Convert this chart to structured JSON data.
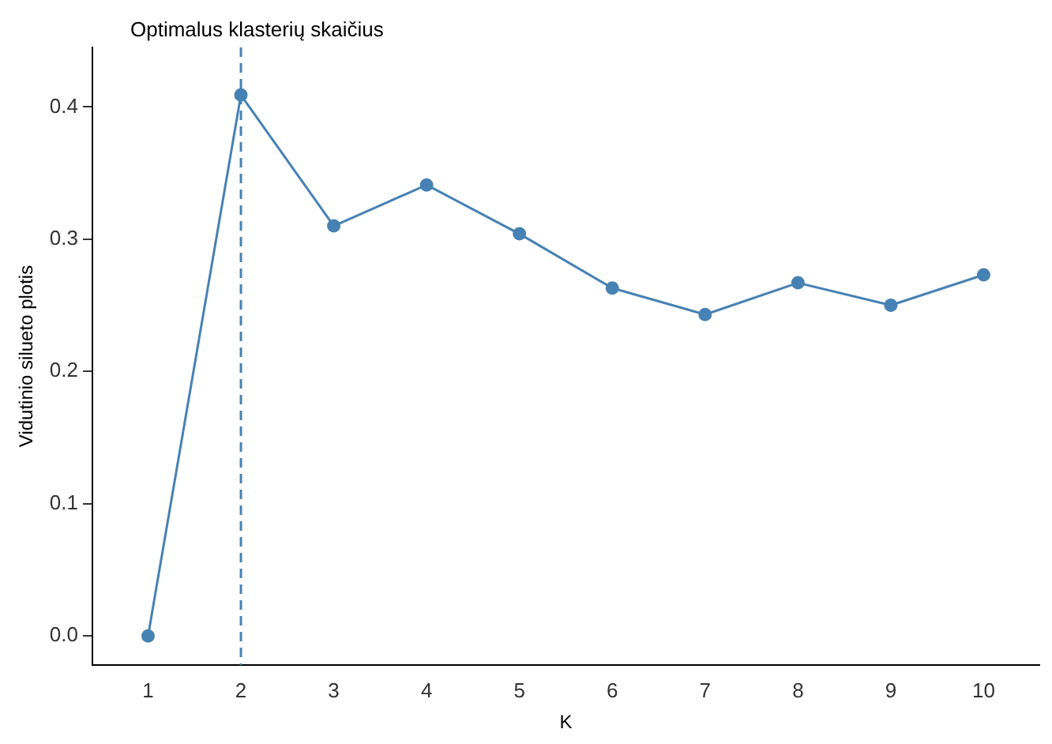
{
  "chart_data": {
    "type": "line",
    "xlabel": "K",
    "ylabel": "Vidutinio silueto plotis",
    "x": [
      1,
      2,
      3,
      4,
      5,
      6,
      7,
      8,
      9,
      10
    ],
    "series": [
      {
        "color": "#4682b4",
        "values": [
          0,
          0.409,
          0.31,
          0.341,
          0.304,
          0.263,
          0.243,
          0.267,
          0.25,
          0.273
        ]
      }
    ],
    "xlim": [
      0.4,
      10.6
    ],
    "xticks": [
      1,
      2,
      3,
      4,
      5,
      6,
      7,
      8,
      9,
      10
    ],
    "ylim": [
      -0.022,
      0.445
    ],
    "yticks": [
      {
        "value": 0,
        "label": "0.0"
      },
      {
        "value": 0.1,
        "label": "0.1"
      },
      {
        "value": 0.2,
        "label": "0.2"
      },
      {
        "value": 0.3,
        "label": "0.3"
      },
      {
        "value": 0.4,
        "label": "0.4"
      }
    ],
    "ref_lines": [
      {
        "axis": "x",
        "value": 2,
        "label": "Optimalus klasterių skaičius",
        "color": "#4682b4",
        "line_style": "dashed"
      }
    ],
    "grid": false,
    "legend": false,
    "marker": "circle",
    "line_style": "solid"
  }
}
